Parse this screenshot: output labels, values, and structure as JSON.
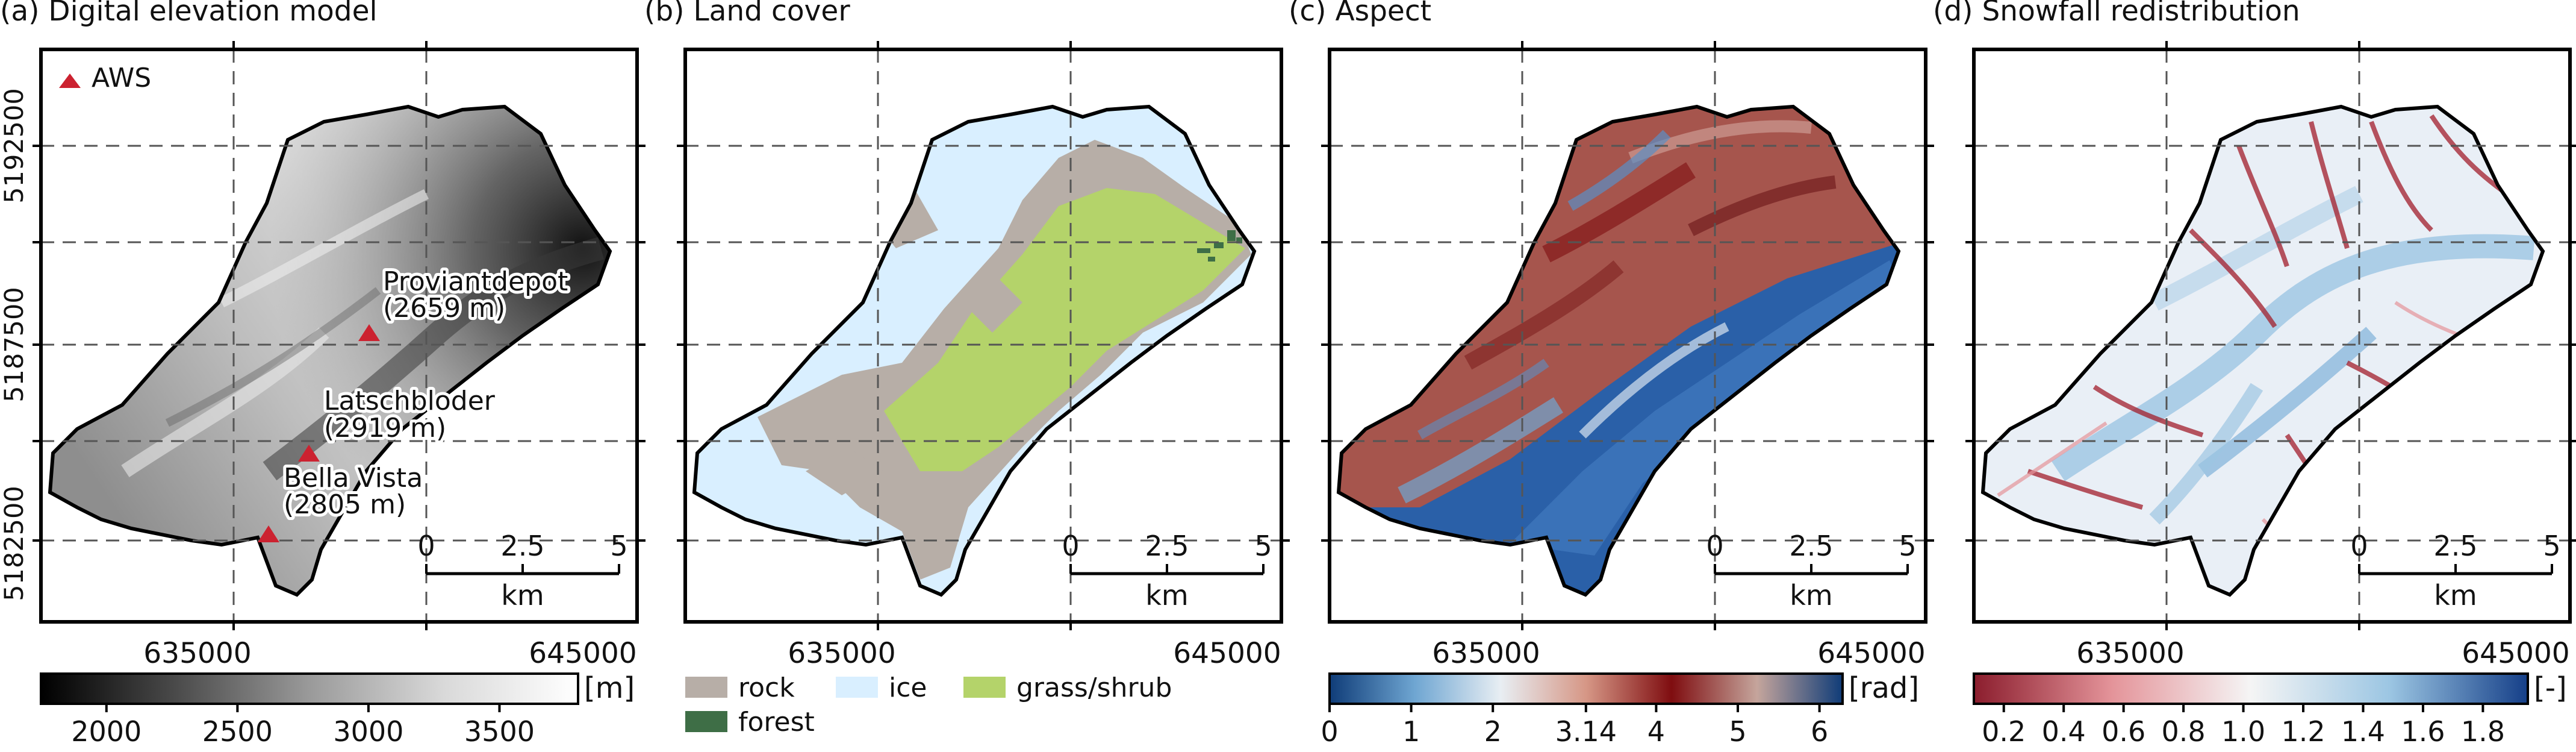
{
  "panels": [
    {
      "id": "dem",
      "title": "(a) Digital elevation model",
      "colorbar": {
        "unit": "[m]",
        "ticks": [
          "2000",
          "2500",
          "3000",
          "3500"
        ],
        "tick_values": [
          2000,
          2500,
          3000,
          3500
        ],
        "range": [
          1750,
          3800
        ],
        "stops": [
          "#000000",
          "#4a4a4a",
          "#9a9a9a",
          "#d9d9d9",
          "#ffffff"
        ]
      }
    },
    {
      "id": "landcover",
      "title": "(b) Land cover",
      "legend": [
        {
          "label": "rock",
          "color": "#b7aea7"
        },
        {
          "label": "ice",
          "color": "#d9efff"
        },
        {
          "label": "grass/shrub",
          "color": "#b4d36a"
        },
        {
          "label": "forest",
          "color": "#3e6e46"
        }
      ]
    },
    {
      "id": "aspect",
      "title": "(c) Aspect",
      "colorbar": {
        "unit": "[rad]",
        "ticks": [
          "0",
          "1",
          "2",
          "3.14",
          "4",
          "5",
          "6"
        ],
        "tick_values": [
          0,
          1,
          2,
          3.14,
          4,
          5,
          6
        ],
        "range": [
          0,
          6.283
        ],
        "stops": [
          "#0f3c78",
          "#6fa6d2",
          "#e8eef3",
          "#d69786",
          "#7f0d10",
          "#c5a59c",
          "#0f3c78"
        ]
      }
    },
    {
      "id": "snowfall",
      "title": "(d) Snowfall redistribution",
      "colorbar": {
        "unit": "[-]",
        "ticks": [
          "0.2",
          "0.4",
          "0.6",
          "0.8",
          "1.0",
          "1.2",
          "1.4",
          "1.6",
          "1.8"
        ],
        "tick_values": [
          0.2,
          0.4,
          0.6,
          0.8,
          1.0,
          1.2,
          1.4,
          1.6,
          1.8
        ],
        "range": [
          0.1,
          1.95
        ],
        "stops": [
          "#8b1d2d",
          "#e4949a",
          "#f5f5f5",
          "#9cc6e3",
          "#153f88"
        ]
      }
    }
  ],
  "axes": {
    "x_ticks": [
      "635000",
      "645000"
    ],
    "y_ticks": [
      "5182500",
      "5187500",
      "5192500"
    ]
  },
  "scalebar": {
    "ticks": [
      "0",
      "2.5",
      "5"
    ],
    "unit": "km"
  },
  "aws": {
    "legend_label": "AWS",
    "marker_color": "#cc2230",
    "stations": [
      {
        "name": "Proviantdepot",
        "elevation": "(2659 m)"
      },
      {
        "name": "Latschbloder",
        "elevation": "(2919 m)"
      },
      {
        "name": "Bella Vista",
        "elevation": "(2805 m)"
      }
    ]
  }
}
